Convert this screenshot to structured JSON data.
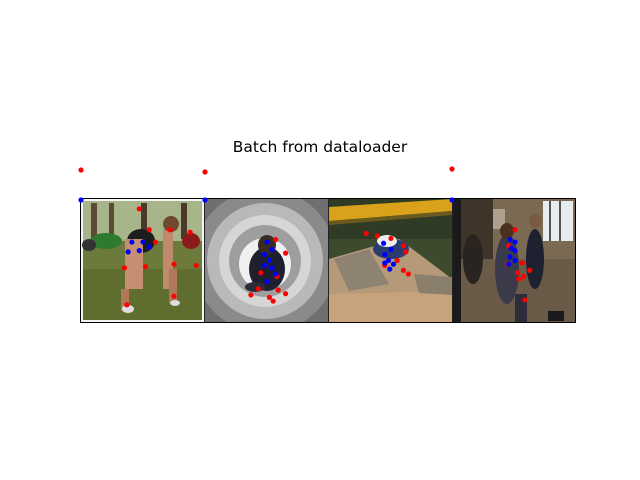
{
  "figure": {
    "title": "Batch from dataloader"
  },
  "colors": {
    "joint": "#ff0000",
    "visible_joint": "#0000ff",
    "frame": "#000000"
  },
  "images": [
    {
      "description_icon": "photo-outdoor-pushup",
      "keypoints_red": [
        [
          0.47,
          0.08
        ],
        [
          0.72,
          0.25
        ],
        [
          0.88,
          0.27
        ],
        [
          0.55,
          0.25
        ],
        [
          0.6,
          0.35
        ],
        [
          0.35,
          0.56
        ],
        [
          0.52,
          0.55
        ],
        [
          0.75,
          0.53
        ],
        [
          0.93,
          0.54
        ],
        [
          0.37,
          0.86
        ],
        [
          0.75,
          0.79
        ]
      ],
      "keypoints_blue": [
        [
          0.41,
          0.35
        ],
        [
          0.5,
          0.35
        ],
        [
          0.55,
          0.39
        ],
        [
          0.47,
          0.42
        ],
        [
          0.38,
          0.43
        ]
      ]
    },
    {
      "description_icon": "photo-tunnel-slide",
      "keypoints_red": [
        [
          0.57,
          0.33
        ],
        [
          0.45,
          0.6
        ],
        [
          0.58,
          0.63
        ],
        [
          0.43,
          0.73
        ],
        [
          0.65,
          0.77
        ],
        [
          0.52,
          0.8
        ],
        [
          0.37,
          0.78
        ],
        [
          0.59,
          0.74
        ],
        [
          0.55,
          0.83
        ],
        [
          0.65,
          0.44
        ]
      ],
      "keypoints_blue": [
        [
          0.5,
          0.35
        ],
        [
          0.54,
          0.41
        ],
        [
          0.48,
          0.45
        ],
        [
          0.52,
          0.5
        ],
        [
          0.48,
          0.54
        ],
        [
          0.54,
          0.56
        ],
        [
          0.57,
          0.61
        ],
        [
          0.5,
          0.67
        ]
      ]
    },
    {
      "description_icon": "photo-skate-jump",
      "keypoints_red": [
        [
          0.3,
          0.28
        ],
        [
          0.39,
          0.3
        ],
        [
          0.5,
          0.32
        ],
        [
          0.6,
          0.38
        ],
        [
          0.62,
          0.43
        ],
        [
          0.55,
          0.5
        ],
        [
          0.6,
          0.58
        ],
        [
          0.45,
          0.54
        ],
        [
          0.64,
          0.61
        ]
      ],
      "keypoints_blue": [
        [
          0.44,
          0.36
        ],
        [
          0.5,
          0.41
        ],
        [
          0.45,
          0.45
        ],
        [
          0.48,
          0.5
        ],
        [
          0.52,
          0.53
        ],
        [
          0.45,
          0.52
        ],
        [
          0.49,
          0.57
        ]
      ]
    },
    {
      "description_icon": "photo-gym-people",
      "keypoints_red": [
        [
          0.5,
          0.25
        ],
        [
          0.45,
          0.38
        ],
        [
          0.44,
          0.53
        ],
        [
          0.56,
          0.52
        ],
        [
          0.52,
          0.6
        ],
        [
          0.57,
          0.63
        ],
        [
          0.62,
          0.58
        ],
        [
          0.58,
          0.82
        ],
        [
          0.53,
          0.65
        ]
      ],
      "keypoints_blue": [
        [
          0.46,
          0.33
        ],
        [
          0.5,
          0.35
        ],
        [
          0.47,
          0.4
        ],
        [
          0.5,
          0.42
        ],
        [
          0.46,
          0.47
        ],
        [
          0.5,
          0.5
        ],
        [
          0.45,
          0.53
        ]
      ]
    }
  ],
  "stray_markers": {
    "red": [
      "off-axis keypoint"
    ],
    "blue": [
      "origin keypoint"
    ]
  }
}
